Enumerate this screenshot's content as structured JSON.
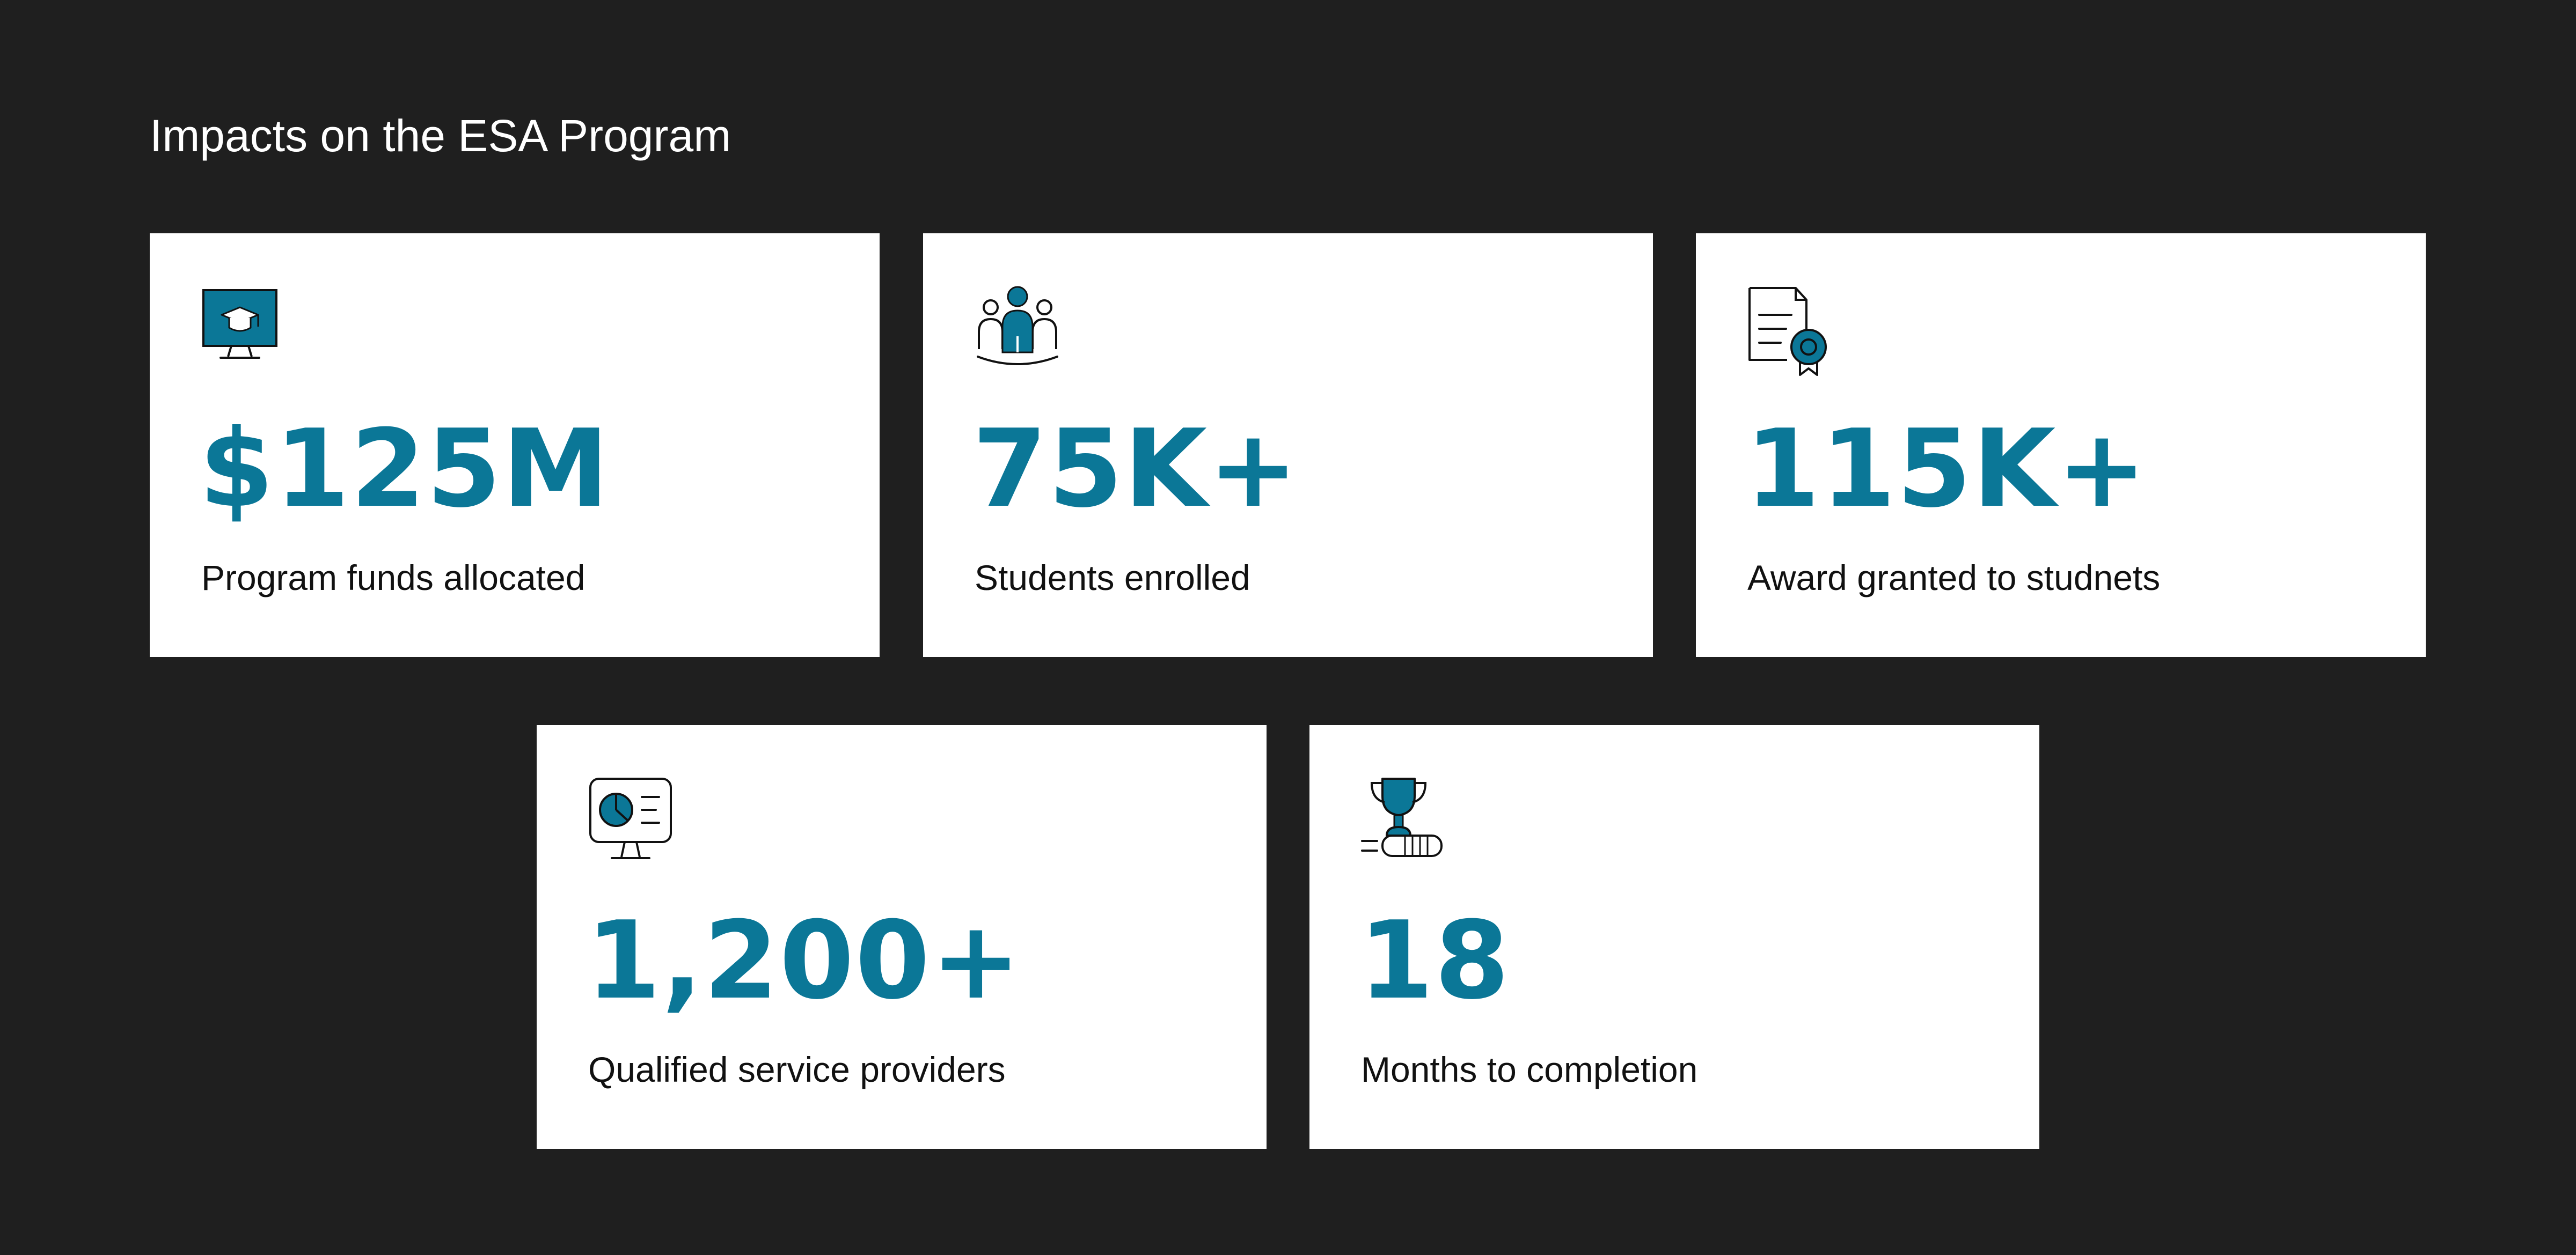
{
  "page": {
    "title": "Impacts on the ESA Program",
    "accent_color": "#0b7797",
    "background_color": "#1f1f1f",
    "card_color": "#ffffff"
  },
  "stats": [
    {
      "icon": "monitor-graduation-cap-icon",
      "value": "$125M",
      "label": "Program funds allocated"
    },
    {
      "icon": "students-group-icon",
      "value": "75K+",
      "label": "Students enrolled"
    },
    {
      "icon": "certificate-award-icon",
      "value": "115K+",
      "label": "Award granted to studnets"
    },
    {
      "icon": "presentation-monitor-chart-icon",
      "value": "1,200+",
      "label": "Qualified service providers"
    },
    {
      "icon": "trophy-books-icon",
      "value": "18",
      "label": "Months to completion"
    }
  ]
}
